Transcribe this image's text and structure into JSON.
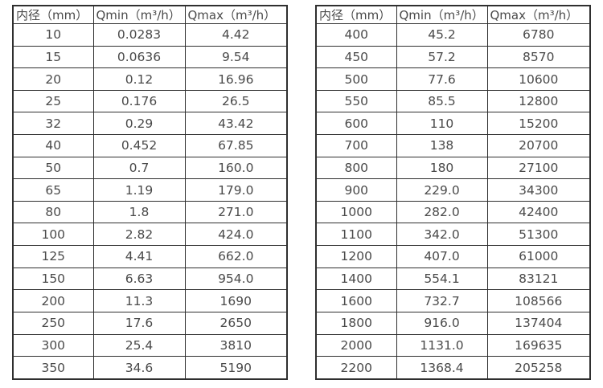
{
  "left_table": {
    "headers": [
      "内径（mm）",
      "Qmin（m³/h）",
      "Qmax（m³/h）"
    ],
    "rows": [
      [
        "10",
        "0.0283",
        "4.42"
      ],
      [
        "15",
        "0.0636",
        "9.54"
      ],
      [
        "20",
        "0.12",
        "16.96"
      ],
      [
        "25",
        "0.176",
        "26.5"
      ],
      [
        "32",
        "0.29",
        "43.42"
      ],
      [
        "40",
        "0.452",
        "67.85"
      ],
      [
        "50",
        "0.7",
        "160.0"
      ],
      [
        "65",
        "1.19",
        "179.0"
      ],
      [
        "80",
        "1.8",
        "271.0"
      ],
      [
        "100",
        "2.82",
        "424.0"
      ],
      [
        "125",
        "4.41",
        "662.0"
      ],
      [
        "150",
        "6.63",
        "954.0"
      ],
      [
        "200",
        "11.3",
        "1690"
      ],
      [
        "250",
        "17.6",
        "2650"
      ],
      [
        "300",
        "25.4",
        "3810"
      ],
      [
        "350",
        "34.6",
        "5190"
      ]
    ]
  },
  "right_table": {
    "headers": [
      "内径（mm）",
      "Qmin（m³/h）",
      "Qmax（m³/h）"
    ],
    "rows": [
      [
        "400",
        "45.2",
        "6780"
      ],
      [
        "450",
        "57.2",
        "8570"
      ],
      [
        "500",
        "77.6",
        "10600"
      ],
      [
        "550",
        "85.5",
        "12800"
      ],
      [
        "600",
        "110",
        "15200"
      ],
      [
        "700",
        "138",
        "20700"
      ],
      [
        "800",
        "180",
        "27100"
      ],
      [
        "900",
        "229.0",
        "34300"
      ],
      [
        "1000",
        "282.0",
        "42400"
      ],
      [
        "1100",
        "342.0",
        "51300"
      ],
      [
        "1200",
        "407.0",
        "61000"
      ],
      [
        "1400",
        "554.1",
        "83121"
      ],
      [
        "1600",
        "732.7",
        "108566"
      ],
      [
        "1800",
        "916.0",
        "137404"
      ],
      [
        "2000",
        "1131.0",
        "169635"
      ],
      [
        "2200",
        "1368.4",
        "205258"
      ]
    ]
  },
  "colors": {
    "border": "#2f2f2f",
    "text": "#4a4a4a",
    "background": "#ffffff"
  }
}
